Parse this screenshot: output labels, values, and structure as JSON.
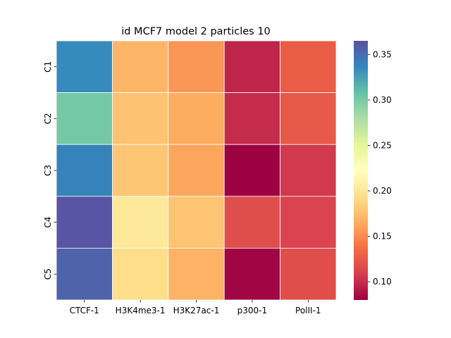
{
  "chart_data": {
    "type": "heatmap",
    "title": "id MCF7 model 2 particles 10",
    "xlabel": "",
    "ylabel": "",
    "x_categories": [
      "CTCF-1",
      "H3K4me3-1",
      "H3K27ac-1",
      "p300-1",
      "PolII-1"
    ],
    "y_categories": [
      "C1",
      "C2",
      "C3",
      "C4",
      "C5"
    ],
    "values": [
      [
        0.335,
        0.17,
        0.155,
        0.097,
        0.127
      ],
      [
        0.302,
        0.177,
        0.165,
        0.1,
        0.125
      ],
      [
        0.339,
        0.179,
        0.162,
        0.08,
        0.106
      ],
      [
        0.362,
        0.202,
        0.178,
        0.118,
        0.112
      ],
      [
        0.355,
        0.193,
        0.168,
        0.082,
        0.118
      ]
    ],
    "colormap": "Spectral",
    "colorbar": {
      "range": [
        0.08,
        0.365
      ],
      "ticks": [
        0.1,
        0.15,
        0.2,
        0.25,
        0.3,
        0.35
      ],
      "tick_labels": [
        "0.10",
        "0.15",
        "0.20",
        "0.25",
        "0.30",
        "0.35"
      ]
    },
    "cell_border_color": "#ffffff"
  }
}
